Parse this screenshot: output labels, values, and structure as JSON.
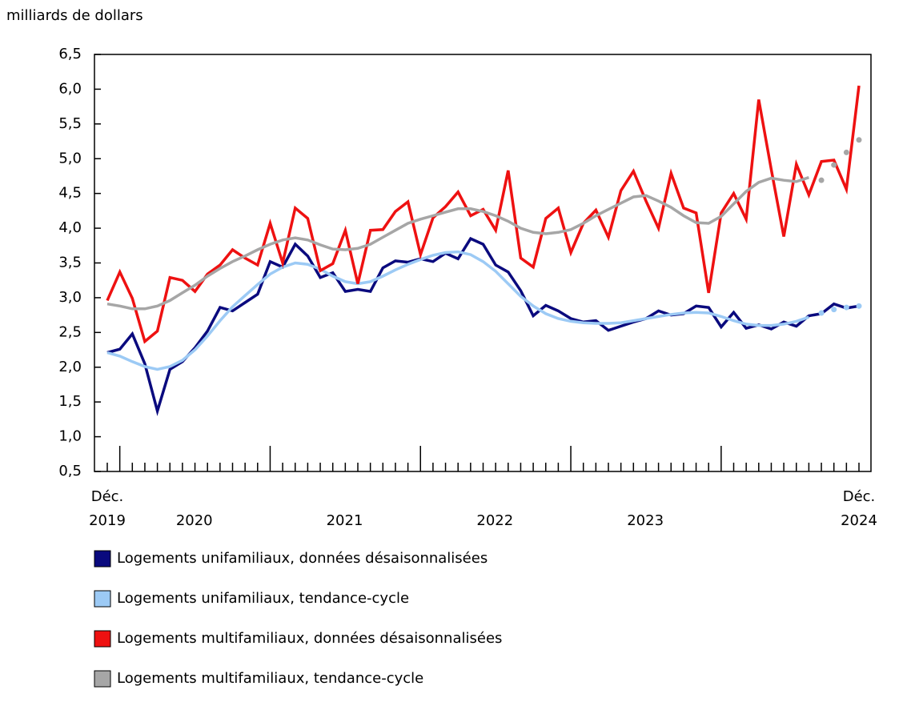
{
  "chart_data": {
    "type": "line",
    "y_label": "milliards de dollars",
    "categories": [
      "Déc.",
      null,
      null,
      null,
      null,
      null,
      null,
      null,
      null,
      null,
      null,
      null,
      null,
      null,
      null,
      null,
      null,
      null,
      null,
      null,
      null,
      null,
      null,
      null,
      null,
      null,
      null,
      null,
      null,
      null,
      null,
      null,
      null,
      null,
      null,
      null,
      null,
      null,
      null,
      null,
      null,
      null,
      null,
      null,
      null,
      null,
      null,
      null,
      null,
      null,
      null,
      null,
      null,
      null,
      null,
      null,
      null,
      null,
      null,
      null,
      "Déc."
    ],
    "years": [
      "2019",
      "2020",
      "2021",
      "2022",
      "2023",
      "2024"
    ],
    "ylim": [
      0.5,
      6.5
    ],
    "yticks": [
      {
        "value": 0.5,
        "label": "0,5"
      },
      {
        "value": 1.0,
        "label": "1,0"
      },
      {
        "value": 1.5,
        "label": "1,5"
      },
      {
        "value": 2.0,
        "label": "2,0"
      },
      {
        "value": 2.5,
        "label": "2,5"
      },
      {
        "value": 3.0,
        "label": "3,0"
      },
      {
        "value": 3.5,
        "label": "3,5"
      },
      {
        "value": 4.0,
        "label": "4,0"
      },
      {
        "value": 4.5,
        "label": "4,5"
      },
      {
        "value": 5.0,
        "label": "5,0"
      },
      {
        "value": 5.5,
        "label": "5,5"
      },
      {
        "value": 6.0,
        "label": "6,0"
      },
      {
        "value": 6.5,
        "label": "6,5"
      }
    ],
    "series": [
      {
        "name": "Logements unifamiliaux, données désaisonnalisées",
        "color": "#0a0a7e",
        "values": [
          2.21,
          2.26,
          2.48,
          2.05,
          1.37,
          1.97,
          2.08,
          2.28,
          2.52,
          2.86,
          2.81,
          2.93,
          3.05,
          3.52,
          3.44,
          3.77,
          3.6,
          3.29,
          3.36,
          3.09,
          3.12,
          3.09,
          3.43,
          3.53,
          3.51,
          3.56,
          3.52,
          3.64,
          3.56,
          3.85,
          3.77,
          3.47,
          3.37,
          3.1,
          2.74,
          2.89,
          2.81,
          2.7,
          2.65,
          2.67,
          2.53,
          2.59,
          2.65,
          2.7,
          2.81,
          2.75,
          2.77,
          2.88,
          2.86,
          2.58,
          2.79,
          2.56,
          2.61,
          2.55,
          2.65,
          2.59,
          2.74,
          2.77,
          2.91,
          2.85,
          2.88
        ]
      },
      {
        "name": "Logements unifamiliaux, tendance-cycle",
        "color": "#9ccaf5",
        "dotted_from": 57,
        "values": [
          2.21,
          2.16,
          2.08,
          2.01,
          1.97,
          2.01,
          2.1,
          2.25,
          2.45,
          2.67,
          2.87,
          3.03,
          3.19,
          3.34,
          3.44,
          3.5,
          3.48,
          3.41,
          3.31,
          3.23,
          3.2,
          3.23,
          3.31,
          3.4,
          3.48,
          3.55,
          3.61,
          3.65,
          3.66,
          3.62,
          3.52,
          3.38,
          3.2,
          3.02,
          2.88,
          2.77,
          2.7,
          2.66,
          2.64,
          2.63,
          2.63,
          2.64,
          2.67,
          2.7,
          2.73,
          2.76,
          2.78,
          2.79,
          2.78,
          2.73,
          2.67,
          2.62,
          2.6,
          2.6,
          2.62,
          2.66,
          2.72,
          2.78,
          2.83,
          2.86,
          2.88
        ]
      },
      {
        "name": "Logements multifamiliaux, données désaisonnalisées",
        "color": "#ee1111",
        "values": [
          2.96,
          3.37,
          2.99,
          2.37,
          2.52,
          3.29,
          3.25,
          3.09,
          3.34,
          3.47,
          3.69,
          3.57,
          3.47,
          4.07,
          3.5,
          4.29,
          4.14,
          3.39,
          3.49,
          3.97,
          3.2,
          3.97,
          3.98,
          4.24,
          4.38,
          3.62,
          4.15,
          4.31,
          4.52,
          4.18,
          4.27,
          3.97,
          4.83,
          3.57,
          3.44,
          4.14,
          4.29,
          3.65,
          4.07,
          4.26,
          3.87,
          4.54,
          4.82,
          4.39,
          4.0,
          4.79,
          4.29,
          4.22,
          3.07,
          4.22,
          4.5,
          4.13,
          5.85,
          4.84,
          3.88,
          4.92,
          4.48,
          4.96,
          4.98,
          4.56,
          6.05
        ]
      },
      {
        "name": "Logements multifamiliaux, tendance-cycle",
        "color": "#a6a6a6",
        "dotted_from": 57,
        "values": [
          2.91,
          2.88,
          2.84,
          2.84,
          2.88,
          2.96,
          3.07,
          3.18,
          3.31,
          3.42,
          3.52,
          3.6,
          3.69,
          3.77,
          3.83,
          3.86,
          3.83,
          3.76,
          3.7,
          3.69,
          3.71,
          3.77,
          3.87,
          3.97,
          4.07,
          4.13,
          4.18,
          4.23,
          4.28,
          4.28,
          4.24,
          4.18,
          4.1,
          4.0,
          3.94,
          3.92,
          3.94,
          3.98,
          4.07,
          4.18,
          4.27,
          4.36,
          4.45,
          4.47,
          4.39,
          4.3,
          4.18,
          4.08,
          4.07,
          4.17,
          4.35,
          4.53,
          4.66,
          4.72,
          4.69,
          4.67,
          4.73,
          4.69,
          4.91,
          5.09,
          5.27
        ]
      }
    ]
  }
}
